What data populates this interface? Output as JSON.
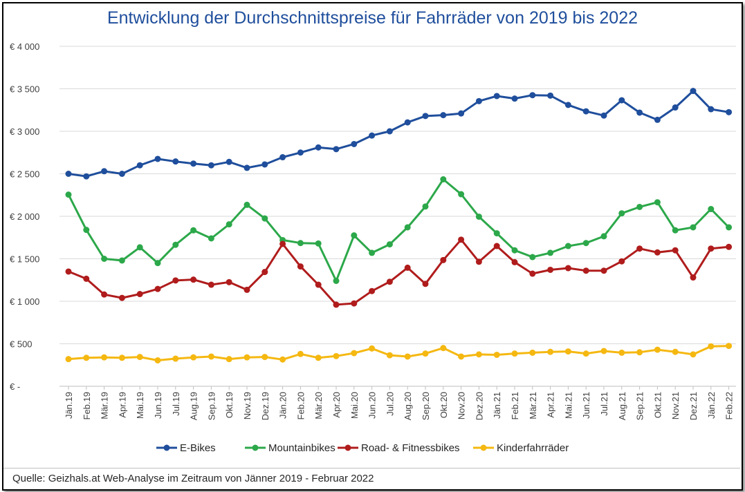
{
  "chart_data": {
    "type": "line",
    "title": "Entwicklung der Durchschnittspreise für Fahrräder von 2019 bis 2022",
    "xlabel": "",
    "ylabel": "",
    "ylim": [
      0,
      4000
    ],
    "y_ticks": [
      0,
      500,
      1000,
      1500,
      2000,
      2500,
      3000,
      3500,
      4000
    ],
    "y_tick_labels": [
      "€ -",
      "€ 500",
      "€ 1 000",
      "€ 1 500",
      "€ 2 000",
      "€ 2 500",
      "€ 3 000",
      "€ 3 500",
      "€ 4 000"
    ],
    "grid": true,
    "legend_position": "bottom",
    "categories": [
      "Jän.19",
      "Feb.19",
      "Mär.19",
      "Apr.19",
      "Mai.19",
      "Jun.19",
      "Jul.19",
      "Aug.19",
      "Sep.19",
      "Okt.19",
      "Nov.19",
      "Dez.19",
      "Jän.20",
      "Feb.20",
      "Mär.20",
      "Apr.20",
      "Mai.20",
      "Jun.20",
      "Jul.20",
      "Aug.20",
      "Sep.20",
      "Okt.20",
      "Nov.20",
      "Dez.20",
      "Jän.21",
      "Feb.21",
      "Mär.21",
      "Apr.21",
      "Mai.21",
      "Jun.21",
      "Jul.21",
      "Aug.21",
      "Sep.21",
      "Okt.21",
      "Nov.21",
      "Dez.21",
      "Jän.22",
      "Feb.22"
    ],
    "series": [
      {
        "name": "E-Bikes",
        "color": "#1f4e9c",
        "values": [
          2500,
          2470,
          2530,
          2500,
          2600,
          2675,
          2645,
          2620,
          2600,
          2640,
          2570,
          2610,
          2695,
          2750,
          2810,
          2790,
          2850,
          2950,
          3000,
          3105,
          3180,
          3190,
          3210,
          3355,
          3415,
          3385,
          3425,
          3420,
          3310,
          3235,
          3185,
          3365,
          3220,
          3135,
          3280,
          3475,
          3260,
          3225
        ]
      },
      {
        "name": "Mountainbikes",
        "color": "#2ca84a",
        "values": [
          2255,
          1840,
          1500,
          1480,
          1635,
          1450,
          1665,
          1835,
          1740,
          1905,
          2135,
          1975,
          1720,
          1685,
          1680,
          1240,
          1775,
          1570,
          1670,
          1870,
          2115,
          2435,
          2260,
          1995,
          1800,
          1600,
          1520,
          1570,
          1650,
          1685,
          1765,
          2035,
          2110,
          2165,
          1835,
          1870,
          2085,
          1870
        ]
      },
      {
        "name": "Road- & Fitnessbikes",
        "color": "#b01c1c",
        "values": [
          1350,
          1265,
          1080,
          1040,
          1085,
          1145,
          1245,
          1255,
          1195,
          1225,
          1135,
          1345,
          1675,
          1410,
          1195,
          960,
          975,
          1120,
          1230,
          1395,
          1205,
          1485,
          1725,
          1465,
          1650,
          1460,
          1325,
          1370,
          1390,
          1360,
          1360,
          1470,
          1620,
          1575,
          1600,
          1280,
          1620,
          1640
        ]
      },
      {
        "name": "Kinderfahrräder",
        "color": "#f5b811",
        "values": [
          320,
          335,
          340,
          335,
          345,
          305,
          325,
          340,
          350,
          320,
          340,
          345,
          315,
          380,
          335,
          355,
          390,
          445,
          365,
          350,
          385,
          450,
          350,
          375,
          370,
          385,
          395,
          405,
          410,
          385,
          415,
          395,
          400,
          430,
          405,
          375,
          470,
          475
        ]
      }
    ]
  },
  "source": "Quelle: Geizhals.at Web-Analyse im Zeitraum von Jänner 2019 - Februar 2022"
}
